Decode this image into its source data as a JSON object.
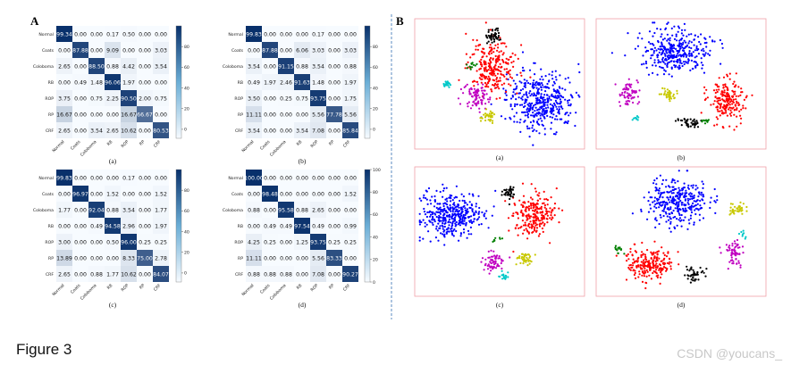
{
  "panel_labels": {
    "A": "A",
    "B": "B"
  },
  "caption": "Figure 3",
  "watermark": "CSDN @youcans_",
  "classes": [
    "Normal",
    "Coats",
    "Coloboma",
    "RB",
    "ROP",
    "RP",
    "CRF"
  ],
  "chart_data": [
    {
      "type": "heatmap",
      "sublabel": "(a)",
      "rows": [
        "Normal",
        "Coats",
        "Coloboma",
        "RB",
        "ROP",
        "RP",
        "CRF"
      ],
      "cols": [
        "Normal",
        "Coats",
        "Coloboma",
        "RB",
        "ROP",
        "RP",
        "CRF"
      ],
      "values": [
        [
          "99.34",
          "0.00",
          "0.00",
          "0.17",
          "0.50",
          "0.00",
          "0.00"
        ],
        [
          "0.00",
          "87.88",
          "0.00",
          "9.09",
          "0.00",
          "0.00",
          "3.03"
        ],
        [
          "2.65",
          "0.00",
          "88.50",
          "0.88",
          "4.42",
          "0.00",
          "3.54"
        ],
        [
          "0.00",
          "0.49",
          "1.48",
          "96.06",
          "1.97",
          "0.00",
          "0.00"
        ],
        [
          "3.75",
          "0.00",
          "0.75",
          "2.25",
          "90.50",
          "2.00",
          "0.75"
        ],
        [
          "16.67",
          "0.00",
          "0.00",
          "0.00",
          "16.67",
          "66.67",
          "0.00"
        ],
        [
          "2.65",
          "0.00",
          "3.54",
          "2.65",
          "10.62",
          "0.00",
          "80.53"
        ]
      ],
      "colorbar_ticks": [
        "80",
        "60",
        "40",
        "20",
        "0"
      ]
    },
    {
      "type": "heatmap",
      "sublabel": "(b)",
      "rows": [
        "Normal",
        "Coats",
        "Coloboma",
        "RB",
        "ROP",
        "RP",
        "CRF"
      ],
      "cols": [
        "Normal",
        "Coats",
        "Coloboma",
        "RB",
        "ROP",
        "RP",
        "CRF"
      ],
      "values": [
        [
          "99.83",
          "0.00",
          "0.00",
          "0.00",
          "0.17",
          "0.00",
          "0.00"
        ],
        [
          "0.00",
          "87.88",
          "0.00",
          "6.06",
          "3.03",
          "0.00",
          "3.03"
        ],
        [
          "3.54",
          "0.00",
          "91.15",
          "0.88",
          "3.54",
          "0.00",
          "0.88"
        ],
        [
          "0.49",
          "1.97",
          "2.46",
          "91.63",
          "1.48",
          "0.00",
          "1.97"
        ],
        [
          "3.50",
          "0.00",
          "0.25",
          "0.75",
          "93.75",
          "0.00",
          "1.75"
        ],
        [
          "11.11",
          "0.00",
          "0.00",
          "0.00",
          "5.56",
          "77.78",
          "5.56"
        ],
        [
          "3.54",
          "0.00",
          "0.00",
          "3.54",
          "7.08",
          "0.00",
          "85.84"
        ]
      ],
      "colorbar_ticks": [
        "80",
        "60",
        "40",
        "20",
        "0"
      ]
    },
    {
      "type": "heatmap",
      "sublabel": "(c)",
      "rows": [
        "Normal",
        "Coats",
        "Coloboma",
        "RB",
        "ROP",
        "RP",
        "CRF"
      ],
      "cols": [
        "Normal",
        "Coats",
        "Coloboma",
        "RB",
        "ROP",
        "RP",
        "CRF"
      ],
      "values": [
        [
          "99.83",
          "0.00",
          "0.00",
          "0.00",
          "0.17",
          "0.00",
          "0.00"
        ],
        [
          "0.00",
          "96.97",
          "0.00",
          "1.52",
          "0.00",
          "0.00",
          "1.52"
        ],
        [
          "1.77",
          "0.00",
          "92.04",
          "0.88",
          "3.54",
          "0.00",
          "1.77"
        ],
        [
          "0.00",
          "0.00",
          "0.49",
          "94.58",
          "2.96",
          "0.00",
          "1.97"
        ],
        [
          "3.00",
          "0.00",
          "0.00",
          "0.50",
          "96.00",
          "0.25",
          "0.25"
        ],
        [
          "13.89",
          "0.00",
          "0.00",
          "0.00",
          "8.33",
          "75.00",
          "2.78"
        ],
        [
          "2.65",
          "0.00",
          "0.88",
          "1.77",
          "10.62",
          "0.00",
          "84.07"
        ]
      ],
      "colorbar_ticks": [
        "80",
        "60",
        "40",
        "20",
        "0"
      ]
    },
    {
      "type": "heatmap",
      "sublabel": "(d)",
      "rows": [
        "Normal",
        "Coats",
        "Coloboma",
        "RB",
        "ROP",
        "RP",
        "CRF"
      ],
      "cols": [
        "Normal",
        "Coats",
        "Coloboma",
        "RB",
        "ROP",
        "RP",
        "CRF"
      ],
      "values": [
        [
          "100.00",
          "0.00",
          "0.00",
          "0.00",
          "0.00",
          "0.00",
          "0.00"
        ],
        [
          "0.00",
          "98.48",
          "0.00",
          "0.00",
          "0.00",
          "0.00",
          "1.52"
        ],
        [
          "0.88",
          "0.00",
          "95.58",
          "0.88",
          "2.65",
          "0.00",
          "0.00"
        ],
        [
          "0.00",
          "0.49",
          "0.49",
          "97.54",
          "0.49",
          "0.00",
          "0.99"
        ],
        [
          "4.25",
          "0.25",
          "0.00",
          "1.25",
          "93.75",
          "0.25",
          "0.25"
        ],
        [
          "11.11",
          "0.00",
          "0.00",
          "0.00",
          "5.56",
          "83.33",
          "0.00"
        ],
        [
          "0.88",
          "0.88",
          "0.88",
          "0.00",
          "7.08",
          "0.00",
          "90.27"
        ]
      ],
      "colorbar_ticks": [
        "100",
        "80",
        "60",
        "40",
        "20",
        "0"
      ]
    },
    {
      "type": "scatter",
      "sublabel": "(a)",
      "clusters": [
        {
          "color": "#0000ff",
          "cx": 0.74,
          "cy": 0.63,
          "sx": 0.1,
          "sy": 0.11,
          "n": 420
        },
        {
          "color": "#ff0000",
          "cx": 0.46,
          "cy": 0.37,
          "sx": 0.07,
          "sy": 0.1,
          "n": 260
        },
        {
          "color": "#c000c0",
          "cx": 0.36,
          "cy": 0.6,
          "sx": 0.035,
          "sy": 0.05,
          "n": 90
        },
        {
          "color": "#000000",
          "cx": 0.46,
          "cy": 0.13,
          "sx": 0.02,
          "sy": 0.03,
          "n": 45
        },
        {
          "color": "#c8c800",
          "cx": 0.43,
          "cy": 0.75,
          "sx": 0.02,
          "sy": 0.025,
          "n": 35
        },
        {
          "color": "#00c8c8",
          "cx": 0.19,
          "cy": 0.5,
          "sx": 0.015,
          "sy": 0.012,
          "n": 18
        },
        {
          "color": "#008000",
          "cx": 0.34,
          "cy": 0.35,
          "sx": 0.015,
          "sy": 0.02,
          "n": 12
        }
      ]
    },
    {
      "type": "scatter",
      "sublabel": "(b)",
      "clusters": [
        {
          "color": "#0000ff",
          "cx": 0.47,
          "cy": 0.25,
          "sx": 0.1,
          "sy": 0.08,
          "n": 340
        },
        {
          "color": "#ff0000",
          "cx": 0.77,
          "cy": 0.62,
          "sx": 0.05,
          "sy": 0.08,
          "n": 200
        },
        {
          "color": "#c000c0",
          "cx": 0.19,
          "cy": 0.58,
          "sx": 0.03,
          "sy": 0.05,
          "n": 70
        },
        {
          "color": "#c8c800",
          "cx": 0.42,
          "cy": 0.58,
          "sx": 0.02,
          "sy": 0.025,
          "n": 35
        },
        {
          "color": "#000000",
          "cx": 0.54,
          "cy": 0.79,
          "sx": 0.03,
          "sy": 0.02,
          "n": 40
        },
        {
          "color": "#00c8c8",
          "cx": 0.24,
          "cy": 0.76,
          "sx": 0.01,
          "sy": 0.01,
          "n": 10
        },
        {
          "color": "#008000",
          "cx": 0.64,
          "cy": 0.79,
          "sx": 0.015,
          "sy": 0.01,
          "n": 10
        }
      ]
    },
    {
      "type": "scatter",
      "sublabel": "(c)",
      "clusters": [
        {
          "color": "#0000ff",
          "cx": 0.22,
          "cy": 0.38,
          "sx": 0.09,
          "sy": 0.09,
          "n": 380
        },
        {
          "color": "#ff0000",
          "cx": 0.7,
          "cy": 0.37,
          "sx": 0.06,
          "sy": 0.08,
          "n": 230
        },
        {
          "color": "#c000c0",
          "cx": 0.46,
          "cy": 0.74,
          "sx": 0.03,
          "sy": 0.04,
          "n": 65
        },
        {
          "color": "#000000",
          "cx": 0.55,
          "cy": 0.2,
          "sx": 0.02,
          "sy": 0.025,
          "n": 40
        },
        {
          "color": "#c8c800",
          "cx": 0.65,
          "cy": 0.7,
          "sx": 0.025,
          "sy": 0.025,
          "n": 40
        },
        {
          "color": "#00c8c8",
          "cx": 0.52,
          "cy": 0.85,
          "sx": 0.012,
          "sy": 0.02,
          "n": 15
        },
        {
          "color": "#008000",
          "cx": 0.49,
          "cy": 0.56,
          "sx": 0.015,
          "sy": 0.01,
          "n": 8
        }
      ]
    },
    {
      "type": "scatter",
      "sublabel": "(d)",
      "clusters": [
        {
          "color": "#0000ff",
          "cx": 0.48,
          "cy": 0.28,
          "sx": 0.09,
          "sy": 0.09,
          "n": 330
        },
        {
          "color": "#ff0000",
          "cx": 0.32,
          "cy": 0.74,
          "sx": 0.07,
          "sy": 0.06,
          "n": 220
        },
        {
          "color": "#c8c800",
          "cx": 0.83,
          "cy": 0.33,
          "sx": 0.025,
          "sy": 0.03,
          "n": 40
        },
        {
          "color": "#c000c0",
          "cx": 0.81,
          "cy": 0.68,
          "sx": 0.03,
          "sy": 0.05,
          "n": 60
        },
        {
          "color": "#000000",
          "cx": 0.57,
          "cy": 0.83,
          "sx": 0.025,
          "sy": 0.025,
          "n": 40
        },
        {
          "color": "#008000",
          "cx": 0.13,
          "cy": 0.64,
          "sx": 0.015,
          "sy": 0.015,
          "n": 14
        },
        {
          "color": "#00c8c8",
          "cx": 0.87,
          "cy": 0.52,
          "sx": 0.01,
          "sy": 0.015,
          "n": 8
        }
      ]
    }
  ]
}
